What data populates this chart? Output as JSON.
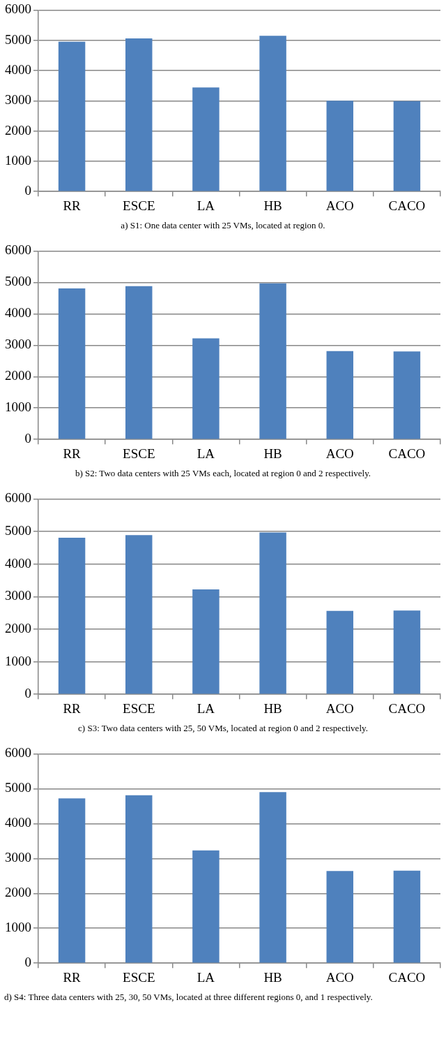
{
  "chart_data": [
    {
      "type": "bar",
      "categories": [
        "RR",
        "ESCE",
        "LA",
        "HB",
        "ACO",
        "CACO"
      ],
      "values": [
        4950,
        5060,
        3440,
        5150,
        3000,
        2990
      ],
      "color": "#4f81bd",
      "ylim": [
        0,
        6000
      ],
      "yticks": [
        0,
        1000,
        2000,
        3000,
        4000,
        5000,
        6000
      ],
      "grid": "y",
      "annotations": [
        "a) S1: One data center with 25 VMs, located at region 0."
      ]
    },
    {
      "type": "bar",
      "categories": [
        "RR",
        "ESCE",
        "LA",
        "HB",
        "ACO",
        "CACO"
      ],
      "values": [
        4810,
        4880,
        3220,
        4970,
        2810,
        2800
      ],
      "color": "#4f81bd",
      "ylim": [
        0,
        6000
      ],
      "yticks": [
        0,
        1000,
        2000,
        3000,
        4000,
        5000,
        6000
      ],
      "grid": "y",
      "annotations": [
        "b) S2: Two data centers with 25 VMs each, located at region 0 and 2 respectively."
      ]
    },
    {
      "type": "bar",
      "categories": [
        "RR",
        "ESCE",
        "LA",
        "HB",
        "ACO",
        "CACO"
      ],
      "values": [
        4810,
        4890,
        3220,
        4970,
        2560,
        2570
      ],
      "color": "#4f81bd",
      "ylim": [
        0,
        6000
      ],
      "yticks": [
        0,
        1000,
        2000,
        3000,
        4000,
        5000,
        6000
      ],
      "grid": "y",
      "annotations": [
        "c) S3: Two data centers with 25, 50 VMs, located at region 0 and 2 respectively."
      ]
    },
    {
      "type": "bar",
      "categories": [
        "RR",
        "ESCE",
        "LA",
        "HB",
        "ACO",
        "CACO"
      ],
      "values": [
        4720,
        4810,
        3230,
        4900,
        2640,
        2650
      ],
      "color": "#4f81bd",
      "ylim": [
        0,
        6000
      ],
      "yticks": [
        0,
        1000,
        2000,
        3000,
        4000,
        5000,
        6000
      ],
      "grid": "y",
      "annotations": [
        "d) S4: Three data centers with 25, 30, 50 VMs, located at three different regions 0, and 1 respectively."
      ]
    }
  ]
}
